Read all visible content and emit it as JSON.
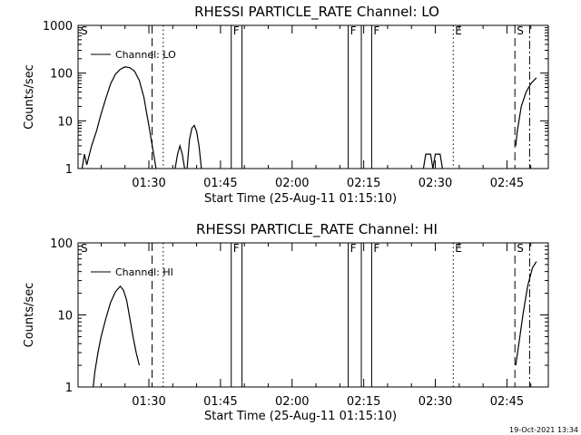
{
  "chart_data": [
    {
      "type": "line",
      "title": "RHESSI PARTICLE_RATE Channel: LO",
      "xlabel": "Start Time (25-Aug-11 01:15:10)",
      "ylabel": "Counts/sec",
      "y_scale": "log",
      "ylim": [
        1,
        1000
      ],
      "xlim": [
        "01:15:10",
        "02:53:40"
      ],
      "x_ticks": [
        "01:30",
        "01:45",
        "02:00",
        "02:15",
        "02:30",
        "02:45"
      ],
      "y_ticks": [
        "1",
        "10",
        "100",
        "1000"
      ],
      "legend": {
        "position": "top-left",
        "entries": [
          "Channel: LO"
        ]
      },
      "series": [
        {
          "name": "Channel: LO",
          "segments": [
            [
              [
                "01:16:00",
                1
              ],
              [
                "01:16:30",
                2
              ],
              [
                "01:17:00",
                1.2
              ],
              [
                "01:18:00",
                3
              ],
              [
                "01:19:00",
                6
              ],
              [
                "01:20:00",
                14
              ],
              [
                "01:21:00",
                30
              ],
              [
                "01:22:00",
                60
              ],
              [
                "01:23:00",
                95
              ],
              [
                "01:24:00",
                120
              ],
              [
                "01:25:00",
                135
              ],
              [
                "01:26:00",
                130
              ],
              [
                "01:27:00",
                110
              ],
              [
                "01:28:00",
                70
              ],
              [
                "01:29:00",
                30
              ],
              [
                "01:29:30",
                15
              ],
              [
                "01:30:00",
                8
              ],
              [
                "01:30:30",
                4
              ],
              [
                "01:31:00",
                2
              ],
              [
                "01:31:30",
                1
              ]
            ],
            [
              [
                "01:35:30",
                1
              ],
              [
                "01:36:00",
                2
              ],
              [
                "01:36:30",
                3
              ],
              [
                "01:37:00",
                2
              ],
              [
                "01:37:30",
                1
              ]
            ],
            [
              [
                "01:38:00",
                1
              ],
              [
                "01:38:30",
                4
              ],
              [
                "01:39:00",
                7
              ],
              [
                "01:39:30",
                8
              ],
              [
                "01:40:00",
                6
              ],
              [
                "01:40:30",
                3
              ],
              [
                "01:41:00",
                1
              ]
            ],
            [
              [
                "02:27:30",
                1
              ],
              [
                "02:28:00",
                2
              ],
              [
                "02:29:00",
                2
              ],
              [
                "02:29:30",
                1
              ],
              [
                "02:30:00",
                2
              ],
              [
                "02:31:00",
                2
              ],
              [
                "02:31:30",
                1
              ]
            ],
            [
              [
                "02:46:50",
                3
              ],
              [
                "02:47:10",
                6
              ],
              [
                "02:48:00",
                20
              ],
              [
                "02:49:00",
                40
              ],
              [
                "02:50:00",
                60
              ],
              [
                "02:51:10",
                80
              ]
            ]
          ]
        }
      ],
      "markers": [
        {
          "label": "S",
          "time": "01:15:10",
          "style": "solid"
        },
        {
          "time": "01:30:40",
          "style": "dashed"
        },
        {
          "time": "01:33:00",
          "style": "dotted"
        },
        {
          "label": "F",
          "time": "01:47:15",
          "style": "solid"
        },
        {
          "time": "01:49:30",
          "style": "solid"
        },
        {
          "label": "F",
          "time": "02:11:45",
          "style": "solid"
        },
        {
          "time": "02:14:30",
          "style": "solid"
        },
        {
          "label": "F",
          "time": "02:16:40",
          "style": "solid"
        },
        {
          "label": "E",
          "time": "02:33:45",
          "style": "dotted"
        },
        {
          "label": "S",
          "time": "02:46:40",
          "style": "dashed"
        },
        {
          "time": "02:49:45",
          "style": "dashdot"
        }
      ]
    },
    {
      "type": "line",
      "title": "RHESSI PARTICLE_RATE Channel: HI",
      "xlabel": "Start Time (25-Aug-11 01:15:10)",
      "ylabel": "Counts/sec",
      "y_scale": "log",
      "ylim": [
        1,
        100
      ],
      "xlim": [
        "01:15:10",
        "02:53:40"
      ],
      "x_ticks": [
        "01:30",
        "01:45",
        "02:00",
        "02:15",
        "02:30",
        "02:45"
      ],
      "y_ticks": [
        "1",
        "10",
        "100"
      ],
      "legend": {
        "position": "top-left",
        "entries": [
          "Channel: HI"
        ]
      },
      "series": [
        {
          "name": "Channel: HI",
          "segments": [
            [
              [
                "01:18:20",
                1
              ],
              [
                "01:18:40",
                1.6
              ],
              [
                "01:19:20",
                3
              ],
              [
                "01:20:00",
                5
              ],
              [
                "01:21:00",
                9
              ],
              [
                "01:22:00",
                15
              ],
              [
                "01:23:00",
                21
              ],
              [
                "01:24:00",
                25
              ],
              [
                "01:24:40",
                22
              ],
              [
                "01:25:20",
                16
              ],
              [
                "01:26:00",
                9
              ],
              [
                "01:26:40",
                5
              ],
              [
                "01:27:20",
                3
              ],
              [
                "01:28:00",
                2
              ]
            ],
            [
              [
                "02:46:50",
                2
              ],
              [
                "02:47:30",
                4
              ],
              [
                "02:48:20",
                10
              ],
              [
                "02:49:20",
                25
              ],
              [
                "02:50:20",
                45
              ],
              [
                "02:51:10",
                55
              ]
            ]
          ]
        }
      ],
      "markers": [
        {
          "label": "S",
          "time": "01:15:10",
          "style": "solid"
        },
        {
          "time": "01:30:40",
          "style": "dashed"
        },
        {
          "time": "01:33:00",
          "style": "dotted"
        },
        {
          "label": "F",
          "time": "01:47:15",
          "style": "solid"
        },
        {
          "time": "01:49:30",
          "style": "solid"
        },
        {
          "label": "F",
          "time": "02:11:45",
          "style": "solid"
        },
        {
          "time": "02:14:30",
          "style": "solid"
        },
        {
          "label": "F",
          "time": "02:16:40",
          "style": "solid"
        },
        {
          "label": "E",
          "time": "02:33:45",
          "style": "dotted"
        },
        {
          "label": "S",
          "time": "02:46:40",
          "style": "dashed"
        },
        {
          "time": "02:49:45",
          "style": "dashdot"
        }
      ]
    }
  ],
  "footer": {
    "timestamp": "19-Oct-2021 13:34"
  }
}
